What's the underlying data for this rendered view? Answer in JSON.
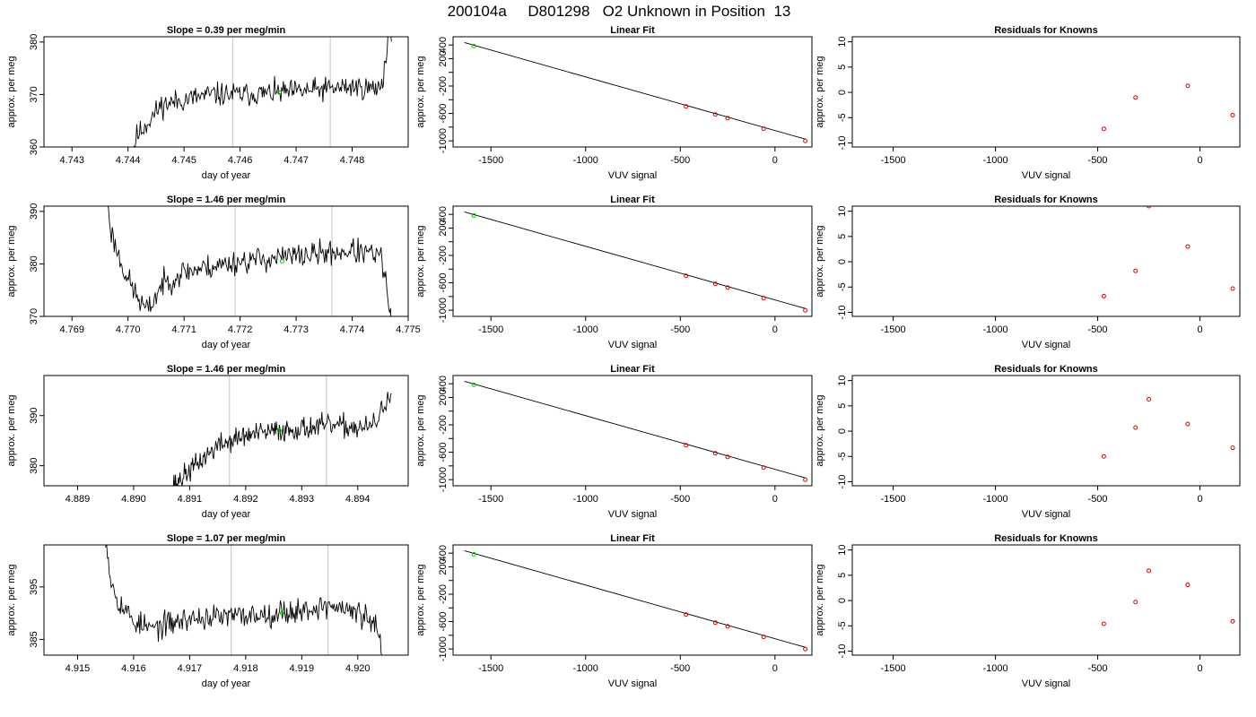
{
  "figure": {
    "title": "200104a     D801298   O2 Unknown in Position  13"
  },
  "chart_data": [
    {
      "type": "line",
      "row": 1,
      "panel": "timeseries",
      "title": "Slope =  0.39  per meg/min",
      "xlabel": "day of year",
      "ylabel": "approx. per meg",
      "xlim": [
        4.7425,
        4.749
      ],
      "ylim": [
        360,
        381
      ],
      "xticks": [
        4.743,
        4.744,
        4.745,
        4.746,
        4.747,
        4.748
      ],
      "xtick_labels": [
        "4.743",
        "4.744",
        "4.745",
        "4.746",
        "4.747",
        "4.748"
      ],
      "yticks": [
        360,
        370,
        380
      ],
      "ytick_labels": [
        "360",
        "370",
        "380"
      ],
      "vlines": [
        4.74587,
        4.74761
      ],
      "marker": {
        "x": 4.7467,
        "y": 370.4,
        "color": "#00cc00"
      },
      "line_color": "#000000",
      "anchors": [
        [
          4.744,
          355
        ],
        [
          4.74415,
          362
        ],
        [
          4.7443,
          364
        ],
        [
          4.7446,
          368
        ],
        [
          4.745,
          369
        ],
        [
          4.7455,
          370
        ],
        [
          4.746,
          370
        ],
        [
          4.747,
          370.5
        ],
        [
          4.748,
          371.5
        ],
        [
          4.74845,
          371
        ],
        [
          4.74855,
          373
        ],
        [
          4.74865,
          381
        ],
        [
          4.7487,
          383
        ]
      ],
      "noise": 1.6,
      "seed": 11
    },
    {
      "type": "scatter",
      "row": 1,
      "panel": "linear_fit",
      "title": "Linear Fit",
      "xlabel": "VUV signal",
      "ylabel": "approx. per meg",
      "xlim": [
        -1700,
        195
      ],
      "ylim": [
        -1090,
        520
      ],
      "xticks": [
        -1500,
        -1000,
        -500,
        0
      ],
      "xtick_labels": [
        "-1500",
        "-1000",
        "-500",
        "0"
      ],
      "yticks": [
        -1000,
        -800,
        -600,
        -400,
        -200,
        0,
        200,
        400
      ],
      "ytick_labels": [
        "-1000",
        "",
        "-600",
        "",
        "-200",
        "",
        "200",
        "400"
      ],
      "fit_line": [
        [
          -1640,
          435
        ],
        [
          160,
          -975
        ]
      ],
      "unknown_point": [
        -1590,
        384
      ],
      "known_points": [
        [
          -470,
          -498
        ],
        [
          -315,
          -616
        ],
        [
          -250,
          -669
        ],
        [
          -60,
          -823
        ],
        [
          160,
          -1002
        ]
      ],
      "colors": {
        "line": "#000000",
        "known": "#dd0000",
        "unknown": "#00cc00"
      }
    },
    {
      "type": "scatter",
      "row": 1,
      "panel": "residuals",
      "title": "Residuals for Knowns",
      "xlabel": "VUV signal",
      "ylabel": "approx. per meg",
      "xlim": [
        -1700,
        195
      ],
      "ylim": [
        -10.8,
        11
      ],
      "xticks": [
        -1500,
        -1000,
        -500,
        0
      ],
      "xtick_labels": [
        "-1500",
        "-1000",
        "-500",
        "0"
      ],
      "yticks": [
        -10,
        -5,
        0,
        5,
        10
      ],
      "ytick_labels": [
        "-10",
        "-5",
        "0",
        "5",
        "10"
      ],
      "points": [
        [
          -470,
          -7.2
        ],
        [
          -315,
          -1
        ],
        [
          -60,
          1.3
        ],
        [
          160,
          -4.5
        ]
      ],
      "point_color": "#dd0000"
    },
    {
      "type": "line",
      "row": 2,
      "panel": "timeseries",
      "title": "Slope =  1.46  per meg/min",
      "xlabel": "day of year",
      "ylabel": "approx. per meg",
      "xlim": [
        4.7685,
        4.775
      ],
      "ylim": [
        370,
        391
      ],
      "xticks": [
        4.769,
        4.77,
        4.771,
        4.772,
        4.773,
        4.774,
        4.775
      ],
      "xtick_labels": [
        "4.769",
        "4.770",
        "4.771",
        "4.772",
        "4.773",
        "4.774",
        "4.775"
      ],
      "yticks": [
        370,
        380,
        390
      ],
      "ytick_labels": [
        "370",
        "380",
        "390"
      ],
      "vlines": [
        4.77191,
        4.77364
      ],
      "marker": {
        "x": 4.77275,
        "y": 380.5,
        "color": "#00cc00"
      },
      "line_color": "#000000",
      "anchors": [
        [
          4.7696,
          395
        ],
        [
          4.7697,
          386
        ],
        [
          4.76985,
          381
        ],
        [
          4.77,
          377
        ],
        [
          4.7702,
          373
        ],
        [
          4.77035,
          371
        ],
        [
          4.7706,
          376
        ],
        [
          4.771,
          378.5
        ],
        [
          4.7715,
          379.5
        ],
        [
          4.772,
          380.5
        ],
        [
          4.773,
          381.5
        ],
        [
          4.774,
          382.5
        ],
        [
          4.7745,
          381.5
        ],
        [
          4.7746,
          377
        ],
        [
          4.77468,
          370
        ],
        [
          4.77472,
          365
        ]
      ],
      "noise": 1.7,
      "seed": 23
    },
    {
      "type": "scatter",
      "row": 2,
      "panel": "linear_fit",
      "title": "Linear Fit",
      "xlabel": "VUV signal",
      "ylabel": "approx. per meg",
      "xlim": [
        -1700,
        195
      ],
      "ylim": [
        -1090,
        520
      ],
      "xticks": [
        -1500,
        -1000,
        -500,
        0
      ],
      "xtick_labels": [
        "-1500",
        "-1000",
        "-500",
        "0"
      ],
      "yticks": [
        -1000,
        -800,
        -600,
        -400,
        -200,
        0,
        200,
        400
      ],
      "ytick_labels": [
        "-1000",
        "",
        "-600",
        "",
        "-200",
        "",
        "200",
        "400"
      ],
      "fit_line": [
        [
          -1640,
          435
        ],
        [
          160,
          -975
        ]
      ],
      "unknown_point": [
        -1590,
        384
      ],
      "known_points": [
        [
          -470,
          -498
        ],
        [
          -315,
          -616
        ],
        [
          -250,
          -669
        ],
        [
          -60,
          -823
        ],
        [
          160,
          -1002
        ]
      ],
      "colors": {
        "line": "#000000",
        "known": "#dd0000",
        "unknown": "#00cc00"
      }
    },
    {
      "type": "scatter",
      "row": 2,
      "panel": "residuals",
      "title": "Residuals for Knowns",
      "xlabel": "VUV signal",
      "ylabel": "approx. per meg",
      "xlim": [
        -1700,
        195
      ],
      "ylim": [
        -10.8,
        11
      ],
      "xticks": [
        -1500,
        -1000,
        -500,
        0
      ],
      "xtick_labels": [
        "-1500",
        "-1000",
        "-500",
        "0"
      ],
      "yticks": [
        -10,
        -5,
        0,
        5,
        10
      ],
      "ytick_labels": [
        "-10",
        "-5",
        "0",
        "5",
        "10"
      ],
      "points": [
        [
          -470,
          -6.8
        ],
        [
          -315,
          -1.8
        ],
        [
          -250,
          11
        ],
        [
          -60,
          3
        ],
        [
          160,
          -5.3
        ]
      ],
      "point_color": "#dd0000"
    },
    {
      "type": "line",
      "row": 3,
      "panel": "timeseries",
      "title": "Slope =  1.46  per meg/min",
      "xlabel": "day of year",
      "ylabel": "approx. per meg",
      "xlim": [
        4.8884,
        4.8949
      ],
      "ylim": [
        376,
        398
      ],
      "xticks": [
        4.889,
        4.89,
        4.891,
        4.892,
        4.893,
        4.894
      ],
      "xtick_labels": [
        "4.889",
        "4.890",
        "4.891",
        "4.892",
        "4.893",
        "4.894"
      ],
      "yticks": [
        380,
        390
      ],
      "ytick_labels": [
        "380",
        "390"
      ],
      "vlines": [
        4.89171,
        4.89344
      ],
      "marker": {
        "x": 4.8926,
        "y": 387,
        "color": "#00cc00"
      },
      "line_color": "#000000",
      "anchors": [
        [
          4.8906,
          370
        ],
        [
          4.8907,
          376
        ],
        [
          4.8909,
          378
        ],
        [
          4.8912,
          381
        ],
        [
          4.8915,
          384
        ],
        [
          4.892,
          386
        ],
        [
          4.8926,
          387
        ],
        [
          4.8935,
          388
        ],
        [
          4.8942,
          387.5
        ],
        [
          4.89435,
          389
        ],
        [
          4.8945,
          393
        ],
        [
          4.8946,
          394
        ]
      ],
      "noise": 1.6,
      "seed": 37
    },
    {
      "type": "scatter",
      "row": 3,
      "panel": "linear_fit",
      "title": "Linear Fit",
      "xlabel": "VUV signal",
      "ylabel": "approx. per meg",
      "xlim": [
        -1700,
        195
      ],
      "ylim": [
        -1090,
        520
      ],
      "xticks": [
        -1500,
        -1000,
        -500,
        0
      ],
      "xtick_labels": [
        "-1500",
        "-1000",
        "-500",
        "0"
      ],
      "yticks": [
        -1000,
        -800,
        -600,
        -400,
        -200,
        0,
        200,
        400
      ],
      "ytick_labels": [
        "-1000",
        "",
        "-600",
        "",
        "-200",
        "",
        "200",
        "400"
      ],
      "fit_line": [
        [
          -1640,
          435
        ],
        [
          160,
          -975
        ]
      ],
      "unknown_point": [
        -1590,
        384
      ],
      "known_points": [
        [
          -470,
          -498
        ],
        [
          -315,
          -616
        ],
        [
          -250,
          -669
        ],
        [
          -60,
          -823
        ],
        [
          160,
          -1002
        ]
      ],
      "colors": {
        "line": "#000000",
        "known": "#dd0000",
        "unknown": "#00cc00"
      }
    },
    {
      "type": "scatter",
      "row": 3,
      "panel": "residuals",
      "title": "Residuals for Knowns",
      "xlabel": "VUV signal",
      "ylabel": "approx. per meg",
      "xlim": [
        -1700,
        195
      ],
      "ylim": [
        -10.8,
        11
      ],
      "xticks": [
        -1500,
        -1000,
        -500,
        0
      ],
      "xtick_labels": [
        "-1500",
        "-1000",
        "-500",
        "0"
      ],
      "yticks": [
        -10,
        -5,
        0,
        5,
        10
      ],
      "ytick_labels": [
        "-10",
        "-5",
        "0",
        "5",
        "10"
      ],
      "points": [
        [
          -470,
          -5
        ],
        [
          -315,
          0.7
        ],
        [
          -250,
          6.3
        ],
        [
          -60,
          1.4
        ],
        [
          160,
          -3.3
        ]
      ],
      "point_color": "#dd0000"
    },
    {
      "type": "line",
      "row": 4,
      "panel": "timeseries",
      "title": "Slope =  1.07  per meg/min",
      "xlabel": "day of year",
      "ylabel": "approx. per meg",
      "xlim": [
        4.9144,
        4.9209
      ],
      "ylim": [
        382,
        403
      ],
      "xticks": [
        4.915,
        4.916,
        4.917,
        4.918,
        4.919,
        4.92
      ],
      "xtick_labels": [
        "4.915",
        "4.916",
        "4.917",
        "4.918",
        "4.919",
        "4.920"
      ],
      "yticks": [
        385,
        395
      ],
      "ytick_labels": [
        "385",
        "395"
      ],
      "vlines": [
        4.91774,
        4.91947
      ],
      "marker": {
        "x": 4.91865,
        "y": 390,
        "color": "#00cc00"
      },
      "line_color": "#000000",
      "anchors": [
        [
          4.9155,
          405
        ],
        [
          4.9156,
          396
        ],
        [
          4.91575,
          392
        ],
        [
          4.916,
          388.5
        ],
        [
          4.9163,
          387
        ],
        [
          4.917,
          389
        ],
        [
          4.918,
          389.5
        ],
        [
          4.919,
          390.5
        ],
        [
          4.9195,
          391.5
        ],
        [
          4.92,
          390
        ],
        [
          4.9203,
          388
        ],
        [
          4.9204,
          384
        ],
        [
          4.92045,
          380
        ]
      ],
      "noise": 1.7,
      "seed": 53
    },
    {
      "type": "scatter",
      "row": 4,
      "panel": "linear_fit",
      "title": "Linear Fit",
      "xlabel": "VUV signal",
      "ylabel": "approx. per meg",
      "xlim": [
        -1700,
        195
      ],
      "ylim": [
        -1090,
        520
      ],
      "xticks": [
        -1500,
        -1000,
        -500,
        0
      ],
      "xtick_labels": [
        "-1500",
        "-1000",
        "-500",
        "0"
      ],
      "yticks": [
        -1000,
        -800,
        -600,
        -400,
        -200,
        0,
        200,
        400
      ],
      "ytick_labels": [
        "-1000",
        "",
        "-600",
        "",
        "-200",
        "",
        "200",
        "400"
      ],
      "fit_line": [
        [
          -1640,
          435
        ],
        [
          160,
          -975
        ]
      ],
      "unknown_point": [
        -1590,
        384
      ],
      "known_points": [
        [
          -470,
          -498
        ],
        [
          -315,
          -616
        ],
        [
          -250,
          -669
        ],
        [
          -60,
          -823
        ],
        [
          160,
          -1002
        ]
      ],
      "colors": {
        "line": "#000000",
        "known": "#dd0000",
        "unknown": "#00cc00"
      }
    },
    {
      "type": "scatter",
      "row": 4,
      "panel": "residuals",
      "title": "Residuals for Knowns",
      "xlabel": "VUV signal",
      "ylabel": "approx. per meg",
      "xlim": [
        -1700,
        195
      ],
      "ylim": [
        -10.8,
        11
      ],
      "xticks": [
        -1500,
        -1000,
        -500,
        0
      ],
      "xtick_labels": [
        "-1500",
        "-1000",
        "-500",
        "0"
      ],
      "yticks": [
        -10,
        -5,
        0,
        5,
        10
      ],
      "ytick_labels": [
        "-10",
        "-5",
        "0",
        "5",
        "10"
      ],
      "points": [
        [
          -470,
          -4.6
        ],
        [
          -315,
          -0.3
        ],
        [
          -250,
          5.9
        ],
        [
          -60,
          3.1
        ],
        [
          160,
          -4.1
        ]
      ],
      "point_color": "#dd0000"
    }
  ]
}
